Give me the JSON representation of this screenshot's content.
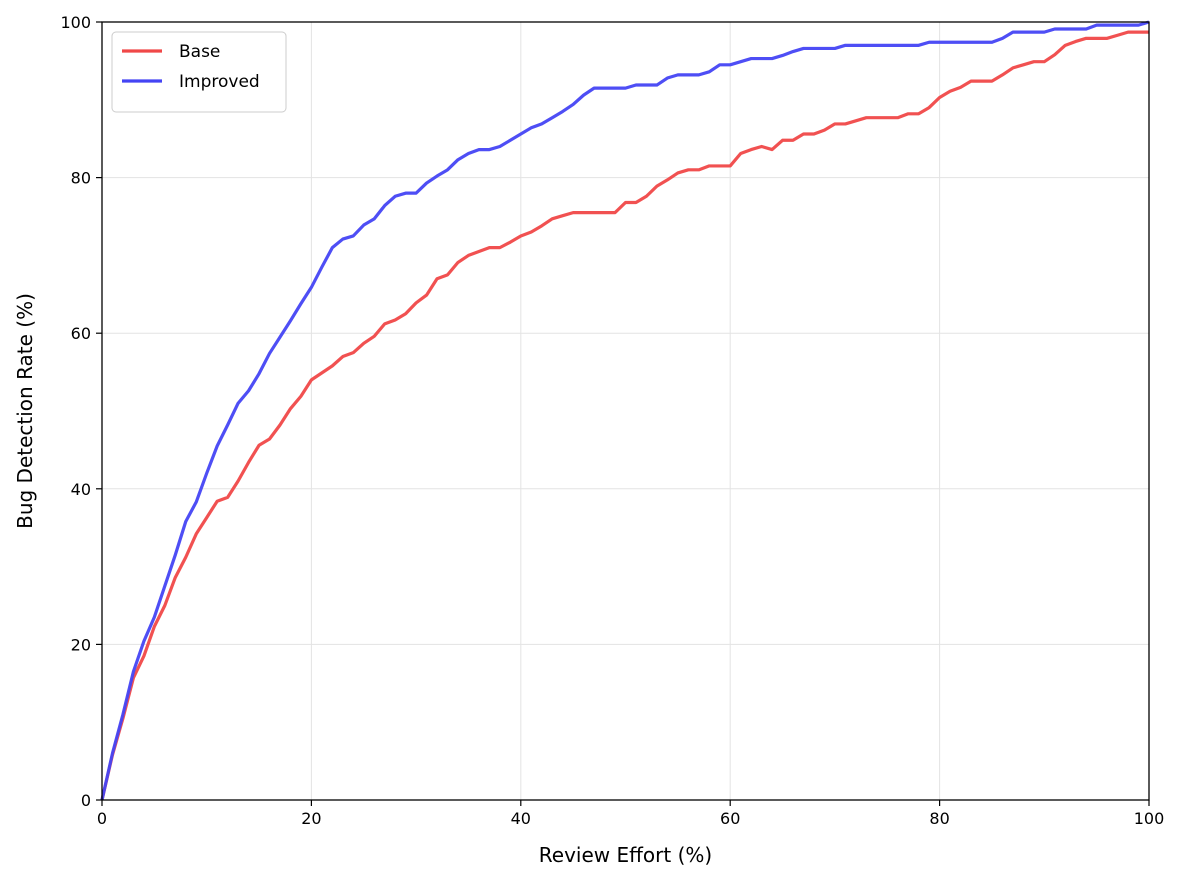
{
  "chart_data": {
    "type": "line",
    "xlabel": "Review Effort (%)",
    "ylabel": "Bug Detection Rate (%)",
    "xlim": [
      0,
      100
    ],
    "ylim": [
      0,
      100
    ],
    "xticks": [
      0,
      20,
      40,
      60,
      80,
      100
    ],
    "yticks": [
      0,
      20,
      40,
      60,
      80,
      100
    ],
    "grid": true,
    "legend_position": "top-left",
    "series": [
      {
        "name": "Base",
        "color": "#f04848",
        "x": [
          0,
          1,
          2,
          3,
          4,
          5,
          6,
          7,
          8,
          9,
          10,
          11,
          12,
          13,
          14,
          15,
          16,
          17,
          18,
          19,
          20,
          21,
          22,
          23,
          24,
          25,
          26,
          27,
          28,
          29,
          30,
          31,
          32,
          33,
          34,
          35,
          36,
          37,
          38,
          39,
          40,
          41,
          42,
          43,
          44,
          45,
          46,
          47,
          48,
          49,
          50,
          51,
          52,
          53,
          54,
          55,
          56,
          57,
          58,
          59,
          60,
          61,
          62,
          63,
          64,
          65,
          66,
          67,
          68,
          69,
          70,
          71,
          72,
          73,
          74,
          75,
          76,
          77,
          78,
          79,
          80,
          81,
          82,
          83,
          84,
          85,
          86,
          87,
          88,
          89,
          90,
          91,
          92,
          93,
          94,
          95,
          96,
          97,
          98,
          99,
          100
        ],
        "y": [
          0,
          5.8,
          10.5,
          15.7,
          18.5,
          22.3,
          25.0,
          28.6,
          31.2,
          34.2,
          36.3,
          38.4,
          38.9,
          41.0,
          43.4,
          45.6,
          46.4,
          48.2,
          50.3,
          51.9,
          54.0,
          54.9,
          55.8,
          57.0,
          57.5,
          58.7,
          59.6,
          61.2,
          61.7,
          62.5,
          63.9,
          64.9,
          67.0,
          67.5,
          69.1,
          70.0,
          70.5,
          71.0,
          71.0,
          71.7,
          72.5,
          73.0,
          73.8,
          74.7,
          75.1,
          75.5,
          75.5,
          75.5,
          75.5,
          75.5,
          76.8,
          76.8,
          77.6,
          78.9,
          79.7,
          80.6,
          81.0,
          81.0,
          81.5,
          81.5,
          81.5,
          83.1,
          83.6,
          84.0,
          83.6,
          84.8,
          84.8,
          85.6,
          85.6,
          86.1,
          86.9,
          86.9,
          87.3,
          87.7,
          87.7,
          87.7,
          87.7,
          88.2,
          88.2,
          89.0,
          90.3,
          91.1,
          91.6,
          92.4,
          92.4,
          92.4,
          93.2,
          94.1,
          94.5,
          94.9,
          94.9,
          95.8,
          97.0,
          97.5,
          97.9,
          97.9,
          97.9,
          98.3,
          98.7,
          98.7,
          98.7
        ]
      },
      {
        "name": "Improved",
        "color": "#4444f4",
        "x": [
          0,
          1,
          2,
          3,
          4,
          5,
          6,
          7,
          8,
          9,
          10,
          11,
          12,
          13,
          14,
          15,
          16,
          17,
          18,
          19,
          20,
          21,
          22,
          23,
          24,
          25,
          26,
          27,
          28,
          29,
          30,
          31,
          32,
          33,
          34,
          35,
          36,
          37,
          38,
          39,
          40,
          41,
          42,
          43,
          44,
          45,
          46,
          47,
          48,
          49,
          50,
          51,
          52,
          53,
          54,
          55,
          56,
          57,
          58,
          59,
          60,
          61,
          62,
          63,
          64,
          65,
          66,
          67,
          68,
          69,
          70,
          71,
          72,
          73,
          74,
          75,
          76,
          77,
          78,
          79,
          80,
          81,
          82,
          83,
          84,
          85,
          86,
          87,
          88,
          89,
          90,
          91,
          92,
          93,
          94,
          95,
          96,
          97,
          98,
          99,
          100
        ],
        "y": [
          0,
          6.0,
          11.0,
          16.5,
          20.4,
          23.5,
          27.5,
          31.5,
          35.8,
          38.3,
          42.0,
          45.5,
          48.2,
          51.0,
          52.6,
          54.8,
          57.4,
          59.5,
          61.6,
          63.8,
          65.9,
          68.5,
          71.0,
          72.1,
          72.5,
          73.9,
          74.7,
          76.4,
          77.6,
          78.0,
          78.0,
          79.3,
          80.2,
          81.0,
          82.3,
          83.1,
          83.6,
          83.6,
          84.0,
          84.8,
          85.6,
          86.4,
          86.9,
          87.7,
          88.5,
          89.4,
          90.6,
          91.5,
          91.5,
          91.5,
          91.5,
          91.9,
          91.9,
          91.9,
          92.8,
          93.2,
          93.2,
          93.2,
          93.6,
          94.5,
          94.5,
          94.9,
          95.3,
          95.3,
          95.3,
          95.7,
          96.2,
          96.6,
          96.6,
          96.6,
          96.6,
          97.0,
          97.0,
          97.0,
          97.0,
          97.0,
          97.0,
          97.0,
          97.0,
          97.4,
          97.4,
          97.4,
          97.4,
          97.4,
          97.4,
          97.4,
          97.9,
          98.7,
          98.7,
          98.7,
          98.7,
          99.1,
          99.1,
          99.1,
          99.1,
          99.6,
          99.6,
          99.6,
          99.6,
          99.6,
          100
        ]
      }
    ]
  }
}
